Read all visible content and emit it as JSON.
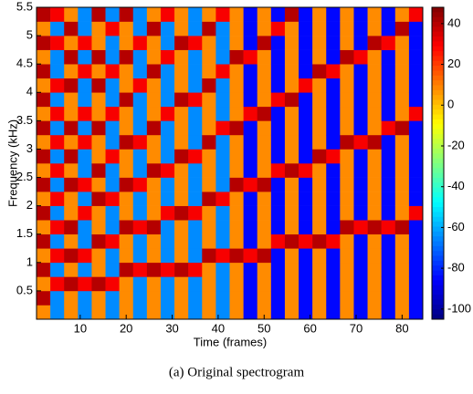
{
  "chart_data": {
    "type": "heatmap",
    "xlabel": "Time (frames)",
    "ylabel": "Frequency (kHz)",
    "x": [
      2,
      5,
      8,
      11,
      14,
      17,
      20,
      23,
      26,
      29,
      32,
      35,
      38,
      41,
      44,
      47,
      50,
      53,
      56,
      59,
      62,
      65,
      68,
      71,
      74,
      77,
      80,
      83
    ],
    "y": [
      0.125,
      0.375,
      0.625,
      0.875,
      1.125,
      1.375,
      1.625,
      1.875,
      2.125,
      2.375,
      2.625,
      2.875,
      3.125,
      3.375,
      3.625,
      3.875,
      4.125,
      4.375,
      4.625,
      4.875,
      5.125,
      5.375
    ],
    "xlim": [
      0.5,
      84.5
    ],
    "ylim": [
      0,
      5.5
    ],
    "xticks": [
      10,
      20,
      30,
      40,
      50,
      60,
      70,
      80
    ],
    "yticks": [
      0.5,
      1,
      1.5,
      2,
      2.5,
      3,
      3.5,
      4,
      4.5,
      5,
      5.5
    ],
    "clim": [
      -105,
      48
    ],
    "cticks": [
      -100,
      -80,
      -60,
      -40,
      -20,
      0,
      20,
      40
    ],
    "colormap": "jet",
    "z": [
      [
        8,
        40,
        8,
        40,
        8,
        40,
        8,
        40,
        8,
        40,
        8,
        40,
        8,
        40,
        8,
        40,
        8,
        40,
        8,
        40,
        8,
        40
      ],
      [
        -65,
        -65,
        30,
        -65,
        30,
        -65,
        30,
        -65,
        30,
        -65,
        30,
        -65,
        30,
        -65,
        30,
        -65,
        30,
        -65,
        -65,
        30,
        -65,
        30
      ],
      [
        8,
        8,
        40,
        8,
        40,
        8,
        40,
        8,
        8,
        40,
        8,
        40,
        8,
        40,
        8,
        8,
        40,
        8,
        40,
        8,
        40,
        8
      ],
      [
        -65,
        -65,
        30,
        -65,
        30,
        -65,
        -65,
        30,
        -65,
        30,
        -65,
        -65,
        30,
        -65,
        30,
        -65,
        -65,
        30,
        -65,
        30,
        -65,
        -65
      ],
      [
        8,
        8,
        40,
        8,
        8,
        40,
        8,
        8,
        40,
        8,
        40,
        8,
        8,
        40,
        8,
        8,
        40,
        8,
        40,
        8,
        8,
        40
      ],
      [
        -65,
        -65,
        30,
        -65,
        -65,
        30,
        -65,
        -65,
        30,
        -65,
        -65,
        30,
        -65,
        -65,
        30,
        -65,
        -65,
        30,
        -65,
        -65,
        30,
        -65
      ],
      [
        8,
        8,
        8,
        40,
        8,
        8,
        40,
        8,
        8,
        40,
        8,
        8,
        40,
        8,
        8,
        40,
        8,
        8,
        40,
        8,
        8,
        40
      ],
      [
        -65,
        -65,
        -65,
        30,
        -65,
        -65,
        30,
        -65,
        -65,
        30,
        -65,
        -65,
        30,
        -65,
        -65,
        -65,
        30,
        -65,
        -65,
        30,
        -65,
        -65
      ],
      [
        8,
        8,
        8,
        40,
        8,
        8,
        40,
        8,
        8,
        8,
        40,
        8,
        8,
        40,
        8,
        8,
        8,
        40,
        8,
        8,
        40,
        8
      ],
      [
        -65,
        -65,
        -65,
        30,
        -65,
        -65,
        -65,
        30,
        -65,
        -65,
        30,
        -65,
        -65,
        -65,
        30,
        -65,
        -65,
        -65,
        30,
        -65,
        -65,
        30
      ],
      [
        8,
        8,
        8,
        40,
        8,
        8,
        8,
        40,
        8,
        8,
        8,
        40,
        8,
        8,
        8,
        40,
        8,
        8,
        8,
        40,
        8,
        8
      ],
      [
        -65,
        -65,
        -65,
        30,
        -65,
        -65,
        -65,
        30,
        -65,
        -65,
        -65,
        30,
        -65,
        -65,
        -65,
        30,
        -65,
        -65,
        -65,
        30,
        -65,
        -65
      ],
      [
        8,
        8,
        8,
        8,
        40,
        8,
        8,
        8,
        40,
        8,
        8,
        8,
        40,
        8,
        8,
        8,
        40,
        8,
        8,
        8,
        40,
        8
      ],
      [
        -65,
        -65,
        -65,
        -65,
        30,
        -65,
        -65,
        -65,
        30,
        -65,
        -65,
        -65,
        -65,
        30,
        -65,
        -65,
        -65,
        30,
        -65,
        -65,
        -65,
        30
      ],
      [
        8,
        8,
        8,
        8,
        40,
        8,
        8,
        8,
        8,
        40,
        8,
        8,
        8,
        40,
        8,
        8,
        8,
        8,
        40,
        8,
        8,
        8
      ],
      [
        -85,
        -85,
        -85,
        -85,
        30,
        -85,
        -85,
        -85,
        -85,
        30,
        -85,
        -85,
        -85,
        -85,
        30,
        -85,
        -85,
        -85,
        30,
        -85,
        -85,
        -85
      ],
      [
        8,
        8,
        8,
        8,
        40,
        8,
        8,
        8,
        8,
        40,
        8,
        8,
        8,
        8,
        40,
        8,
        8,
        8,
        8,
        40,
        8,
        8
      ],
      [
        -85,
        -85,
        -85,
        -85,
        -85,
        30,
        -85,
        -85,
        -85,
        -85,
        30,
        -85,
        -85,
        -85,
        -85,
        30,
        -85,
        -85,
        -85,
        -85,
        30,
        -85
      ],
      [
        8,
        8,
        8,
        8,
        8,
        40,
        8,
        8,
        8,
        8,
        40,
        8,
        8,
        8,
        8,
        40,
        8,
        8,
        8,
        8,
        8,
        40
      ],
      [
        -85,
        -85,
        -85,
        -85,
        -85,
        30,
        -85,
        -85,
        -85,
        -85,
        30,
        -85,
        -85,
        -85,
        -85,
        -85,
        30,
        -85,
        -85,
        -85,
        -85,
        -85
      ],
      [
        8,
        8,
        8,
        8,
        8,
        40,
        8,
        8,
        8,
        8,
        8,
        40,
        8,
        8,
        8,
        8,
        8,
        40,
        8,
        8,
        8,
        8
      ],
      [
        -85,
        -85,
        -85,
        -85,
        -85,
        30,
        -85,
        -85,
        -85,
        -85,
        -85,
        30,
        -85,
        -85,
        -85,
        -85,
        -85,
        30,
        -85,
        -85,
        -85,
        -85
      ],
      [
        8,
        8,
        8,
        8,
        8,
        8,
        40,
        8,
        8,
        8,
        8,
        8,
        40,
        8,
        8,
        8,
        8,
        8,
        40,
        8,
        8,
        8
      ],
      [
        -85,
        -85,
        -85,
        -85,
        -85,
        -85,
        30,
        -85,
        -85,
        -85,
        -85,
        -85,
        30,
        -85,
        -85,
        -85,
        -85,
        -85,
        30,
        -85,
        -85,
        -85
      ],
      [
        8,
        8,
        8,
        8,
        8,
        8,
        40,
        8,
        8,
        8,
        8,
        8,
        40,
        8,
        8,
        8,
        8,
        8,
        8,
        40,
        8,
        8
      ],
      [
        -85,
        -85,
        -85,
        -85,
        -85,
        -85,
        30,
        -85,
        -85,
        -85,
        -85,
        -85,
        -85,
        30,
        -85,
        -85,
        -85,
        -85,
        -85,
        30,
        -85,
        -85
      ],
      [
        8,
        8,
        8,
        8,
        8,
        8,
        40,
        8,
        8,
        8,
        8,
        8,
        8,
        40,
        8,
        8,
        8,
        8,
        8,
        8,
        40,
        8
      ],
      [
        -85,
        -85,
        -85,
        -85,
        -85,
        -85,
        -85,
        30,
        -85,
        -85,
        -85,
        -85,
        -85,
        -85,
        30,
        -85,
        -85,
        -85,
        -85,
        -85,
        -85,
        30
      ]
    ]
  },
  "caption": "(a) Original spectrogram"
}
